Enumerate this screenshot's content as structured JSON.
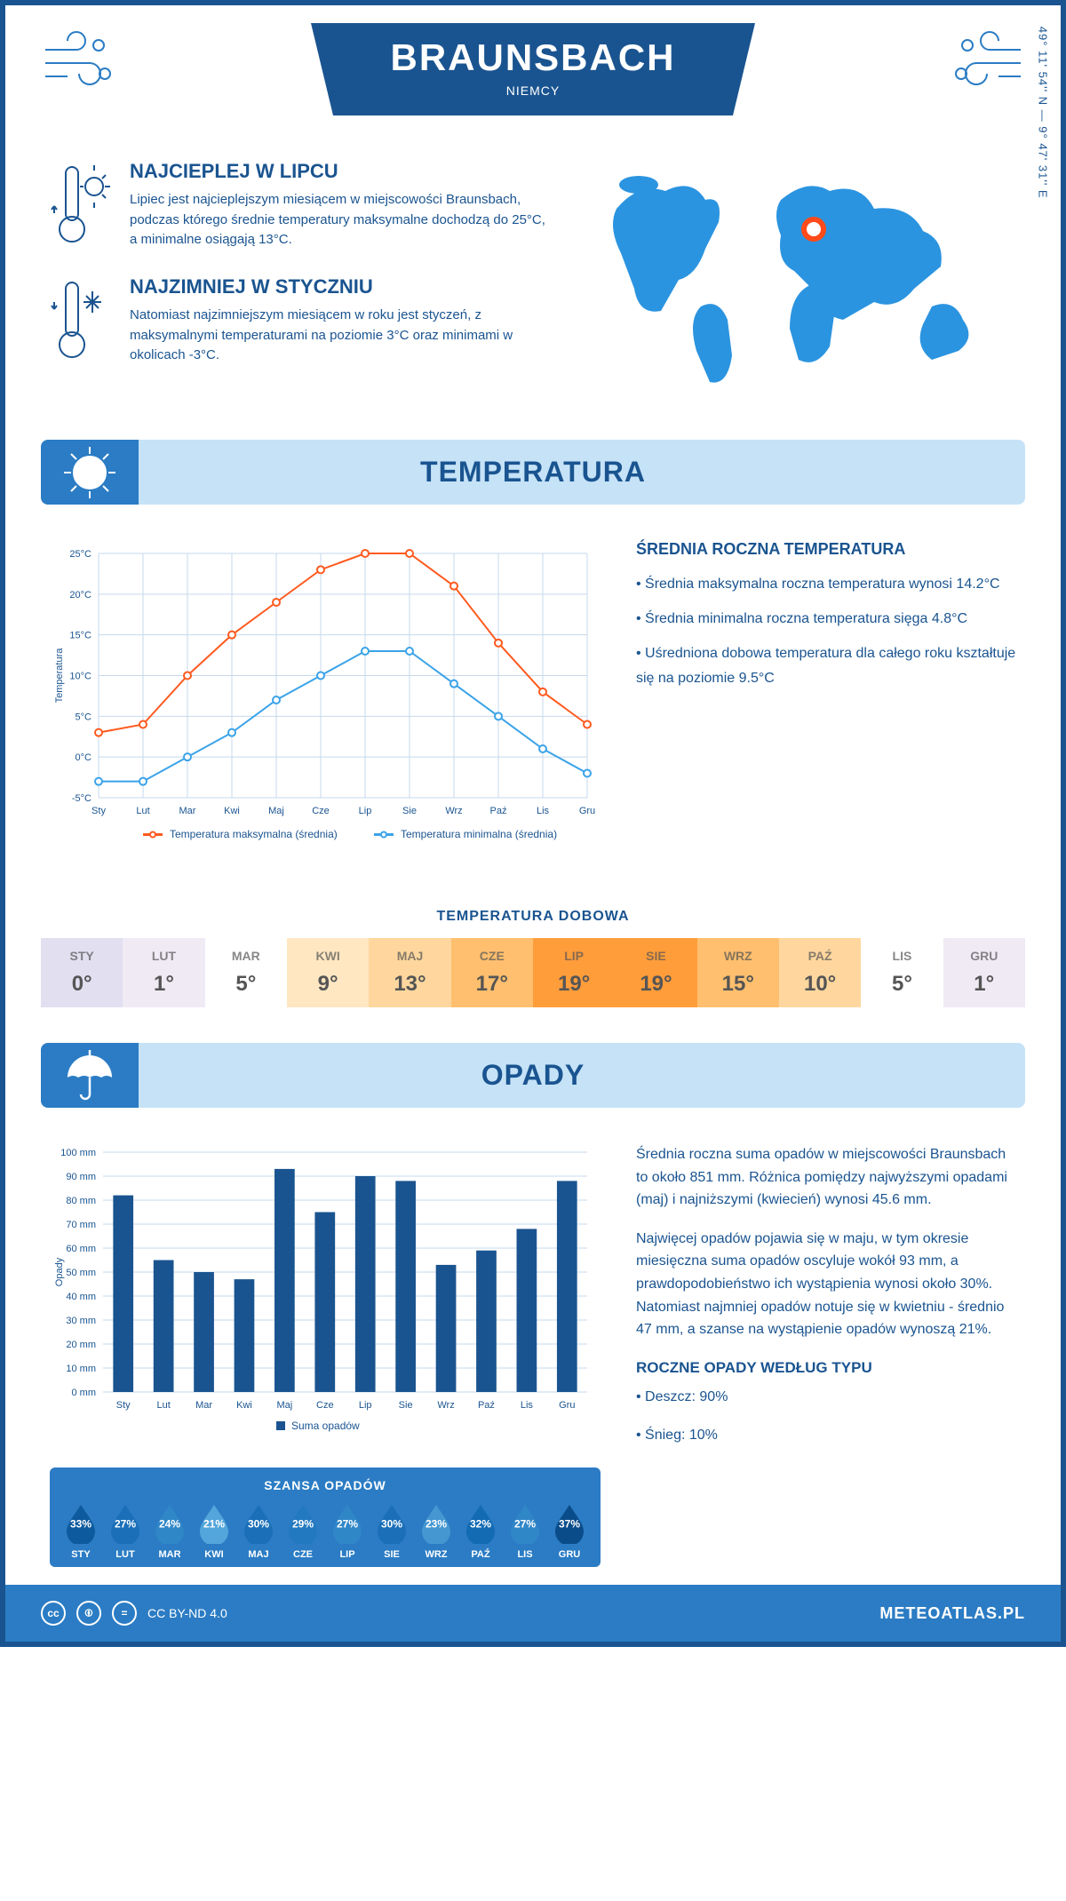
{
  "header": {
    "city": "BRAUNSBACH",
    "country": "NIEMCY",
    "coords": "49° 11' 54'' N — 9° 47' 31'' E"
  },
  "intro": {
    "warm": {
      "title": "NAJCIEPLEJ W LIPCU",
      "text": "Lipiec jest najcieplejszym miesiącem w miejscowości Braunsbach, podczas którego średnie temperatury maksymalne dochodzą do 25°C, a minimalne osiągają 13°C."
    },
    "cold": {
      "title": "NAJZIMNIEJ W STYCZNIU",
      "text": "Natomiast najzimniejszym miesiącem w roku jest styczeń, z maksymalnymi temperaturami na poziomie 3°C oraz minimami w okolicach -3°C."
    }
  },
  "sections": {
    "temperature_title": "TEMPERATURA",
    "precip_title": "OPADY"
  },
  "temp_chart": {
    "type": "line",
    "months": [
      "Sty",
      "Lut",
      "Mar",
      "Kwi",
      "Maj",
      "Cze",
      "Lip",
      "Sie",
      "Wrz",
      "Paź",
      "Lis",
      "Gru"
    ],
    "max_series": {
      "label": "Temperatura maksymalna (średnia)",
      "color": "#ff5a1f",
      "values": [
        3,
        4,
        10,
        15,
        19,
        23,
        25,
        25,
        21,
        14,
        8,
        4
      ]
    },
    "min_series": {
      "label": "Temperatura minimalna (średnia)",
      "color": "#3ba3e8",
      "values": [
        -3,
        -3,
        0,
        3,
        7,
        10,
        13,
        13,
        9,
        5,
        1,
        -2
      ]
    },
    "ylim": [
      -5,
      25
    ],
    "ytick_step": 5,
    "ylabel": "Temperatura",
    "grid_color": "#c5d9ed",
    "background_color": "#ffffff",
    "line_width": 2,
    "marker": "circle",
    "marker_size": 4
  },
  "temp_info": {
    "title": "ŚREDNIA ROCZNA TEMPERATURA",
    "bullets": [
      "Średnia maksymalna roczna temperatura wynosi 14.2°C",
      "Średnia minimalna roczna temperatura sięga 4.8°C",
      "Uśredniona dobowa temperatura dla całego roku kształtuje się na poziomie 9.5°C"
    ]
  },
  "daily_temp": {
    "title": "TEMPERATURA DOBOWA",
    "months": [
      "STY",
      "LUT",
      "MAR",
      "KWI",
      "MAJ",
      "CZE",
      "LIP",
      "SIE",
      "WRZ",
      "PAŹ",
      "LIS",
      "GRU"
    ],
    "values": [
      "0°",
      "1°",
      "5°",
      "9°",
      "13°",
      "17°",
      "19°",
      "19°",
      "15°",
      "10°",
      "5°",
      "1°"
    ],
    "bg_colors": [
      "#e1dff0",
      "#f0eaf5",
      "#ffffff",
      "#ffe7c2",
      "#ffd79e",
      "#ffbf6e",
      "#ff9d3b",
      "#ff9d3b",
      "#ffbf6e",
      "#ffd79e",
      "#ffffff",
      "#f0eaf5"
    ],
    "text_color": "#555"
  },
  "precip_chart": {
    "type": "bar",
    "months": [
      "Sty",
      "Lut",
      "Mar",
      "Kwi",
      "Maj",
      "Cze",
      "Lip",
      "Sie",
      "Wrz",
      "Paź",
      "Lis",
      "Gru"
    ],
    "values": [
      82,
      55,
      50,
      47,
      93,
      75,
      90,
      88,
      53,
      59,
      68,
      88
    ],
    "bar_color": "#1a5490",
    "ylim": [
      0,
      100
    ],
    "ytick_step": 10,
    "ylabel": "Opady",
    "legend_label": "Suma opadów",
    "grid_color": "#c5d9ed",
    "bar_width": 0.5
  },
  "precip_info": {
    "p1": "Średnia roczna suma opadów w miejscowości Braunsbach to około 851 mm. Różnica pomiędzy najwyższymi opadami (maj) i najniższymi (kwiecień) wynosi 45.6 mm.",
    "p2": "Najwięcej opadów pojawia się w maju, w tym okresie miesięczna suma opadów oscyluje wokół 93 mm, a prawdopodobieństwo ich wystąpienia wynosi około 30%. Natomiast najmniej opadów notuje się w kwietniu - średnio 47 mm, a szanse na wystąpienie opadów wynoszą 21%.",
    "type_title": "ROCZNE OPADY WEDŁUG TYPU",
    "types": [
      "Deszcz: 90%",
      "Śnieg: 10%"
    ]
  },
  "rain_chance": {
    "title": "SZANSA OPADÓW",
    "months": [
      "STY",
      "LUT",
      "MAR",
      "KWI",
      "MAJ",
      "CZE",
      "LIP",
      "SIE",
      "WRZ",
      "PAŹ",
      "LIS",
      "GRU"
    ],
    "values": [
      "33%",
      "27%",
      "24%",
      "21%",
      "30%",
      "29%",
      "27%",
      "30%",
      "23%",
      "32%",
      "27%",
      "37%"
    ],
    "drop_colors": [
      "#0e5a9e",
      "#1a6fb8",
      "#3087c8",
      "#53a6db",
      "#1a6fb8",
      "#2279c0",
      "#3087c8",
      "#1a6fb8",
      "#4597d2",
      "#126bb3",
      "#3087c8",
      "#0a4c8a"
    ]
  },
  "footer": {
    "license": "CC BY-ND 4.0",
    "site": "METEOATLAS.PL"
  },
  "colors": {
    "primary": "#1a5490",
    "accent": "#2b7cc4",
    "light_blue": "#c5e2f7"
  }
}
